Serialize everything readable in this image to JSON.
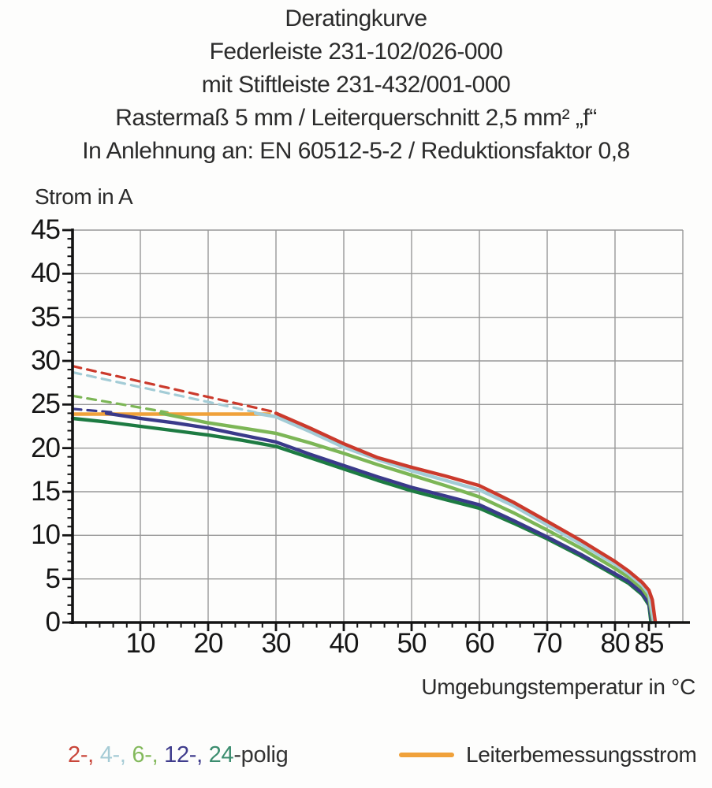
{
  "page": {
    "background": "#fdfdfc"
  },
  "title_lines": [
    "Deratingkurve",
    "Federleiste 231-102/026-000",
    "mit Stiftleiste 231-432/001-000",
    "Rastermaß 5 mm / Leiterquerschnitt 2,5 mm² „f“",
    "In Anlehnung an: EN 60512-5-2 / Reduktionsfaktor 0,8"
  ],
  "chart_data": {
    "type": "line",
    "title": "Deratingkurve",
    "ylabel": "Strom in A",
    "xlabel": "Umgebungstemperatur in °C",
    "xlim": [
      0,
      91
    ],
    "ylim": [
      0,
      45
    ],
    "grid": {
      "on": true,
      "color": "#989898",
      "x_lines": [
        10,
        20,
        30,
        40,
        50,
        60,
        70,
        80,
        90
      ],
      "y_lines": [
        5,
        10,
        15,
        20,
        25,
        30,
        35,
        40,
        45
      ]
    },
    "axes": {
      "color": "#141414",
      "x_major_ticks": [
        10,
        20,
        30,
        40,
        50,
        60,
        70,
        80,
        85
      ],
      "x_minor_step": 2,
      "y_major_ticks": [
        0,
        5,
        10,
        15,
        20,
        25,
        30,
        35,
        40,
        45
      ],
      "y_minor_step": 1
    },
    "series": [
      {
        "name": "24-polig",
        "color": "#1d7b42",
        "points": [
          [
            0,
            23.4
          ],
          [
            5,
            23.0
          ],
          [
            10,
            22.5
          ],
          [
            15,
            22.0
          ],
          [
            20,
            21.5
          ],
          [
            25,
            20.9
          ],
          [
            30,
            20.2
          ],
          [
            35,
            18.9
          ],
          [
            40,
            17.6
          ],
          [
            45,
            16.3
          ],
          [
            50,
            15.1
          ],
          [
            55,
            14.1
          ],
          [
            60,
            13.1
          ],
          [
            65,
            11.4
          ],
          [
            70,
            9.6
          ],
          [
            75,
            7.6
          ],
          [
            80,
            5.4
          ],
          [
            82,
            4.5
          ],
          [
            84,
            3.2
          ],
          [
            85,
            2.0
          ],
          [
            85.3,
            0
          ]
        ]
      },
      {
        "name": "12-polig",
        "color": "#3a3a8a",
        "points": [
          [
            5,
            24.0
          ],
          [
            10,
            23.4
          ],
          [
            15,
            22.9
          ],
          [
            20,
            22.3
          ],
          [
            25,
            21.5
          ],
          [
            30,
            20.7
          ],
          [
            35,
            19.3
          ],
          [
            40,
            18.0
          ],
          [
            45,
            16.7
          ],
          [
            50,
            15.5
          ],
          [
            55,
            14.5
          ],
          [
            60,
            13.5
          ],
          [
            65,
            11.7
          ],
          [
            70,
            9.8
          ],
          [
            75,
            7.8
          ],
          [
            80,
            5.6
          ],
          [
            82,
            4.7
          ],
          [
            84,
            3.4
          ],
          [
            85,
            2.2
          ],
          [
            85.45,
            0
          ]
        ]
      },
      {
        "name": "6-polig",
        "color": "#7cb656",
        "points": [
          [
            13,
            24.0
          ],
          [
            20,
            22.9
          ],
          [
            25,
            22.3
          ],
          [
            30,
            21.7
          ],
          [
            35,
            20.6
          ],
          [
            40,
            19.4
          ],
          [
            45,
            18.1
          ],
          [
            50,
            16.9
          ],
          [
            55,
            15.7
          ],
          [
            60,
            14.4
          ],
          [
            65,
            12.6
          ],
          [
            70,
            10.6
          ],
          [
            75,
            8.5
          ],
          [
            80,
            6.2
          ],
          [
            82,
            5.2
          ],
          [
            84,
            3.9
          ],
          [
            85,
            2.8
          ],
          [
            85.6,
            0
          ]
        ]
      },
      {
        "name": "4-polig",
        "color": "#a3ccd6",
        "points": [
          [
            27,
            24.0
          ],
          [
            30,
            23.6
          ],
          [
            35,
            21.9
          ],
          [
            40,
            20.1
          ],
          [
            45,
            18.7
          ],
          [
            50,
            17.4
          ],
          [
            55,
            16.3
          ],
          [
            60,
            15.2
          ],
          [
            65,
            13.4
          ],
          [
            70,
            11.2
          ],
          [
            75,
            9.0
          ],
          [
            80,
            6.7
          ],
          [
            82,
            5.6
          ],
          [
            84,
            4.3
          ],
          [
            85,
            3.3
          ],
          [
            85.75,
            0
          ]
        ]
      },
      {
        "name": "2-polig",
        "color": "#cb3a2c",
        "points": [
          [
            30,
            24.0
          ],
          [
            35,
            22.3
          ],
          [
            40,
            20.5
          ],
          [
            45,
            18.9
          ],
          [
            50,
            17.8
          ],
          [
            55,
            16.8
          ],
          [
            60,
            15.7
          ],
          [
            65,
            13.8
          ],
          [
            70,
            11.6
          ],
          [
            75,
            9.4
          ],
          [
            80,
            7.0
          ],
          [
            82,
            5.9
          ],
          [
            84,
            4.6
          ],
          [
            85,
            3.7
          ],
          [
            85.5,
            2.6
          ],
          [
            85.95,
            0
          ]
        ]
      }
    ],
    "extrapolations_dashed": [
      {
        "series": "2-polig",
        "color": "#cb3a2c",
        "points": [
          [
            0,
            29.4
          ],
          [
            30,
            24.1
          ]
        ]
      },
      {
        "series": "4-polig",
        "color": "#a3ccd6",
        "points": [
          [
            0,
            28.7
          ],
          [
            27,
            24.1
          ]
        ]
      },
      {
        "series": "6-polig",
        "color": "#7cb656",
        "points": [
          [
            0,
            26.0
          ],
          [
            14,
            24.1
          ]
        ]
      },
      {
        "series": "12-polig",
        "color": "#3a3a8a",
        "points": [
          [
            0,
            24.5
          ],
          [
            6,
            24.1
          ]
        ]
      }
    ],
    "rated_line": {
      "name": "Leiterbemessungsstrom",
      "color": "#f0a13a",
      "points": [
        [
          0,
          23.9
        ],
        [
          29,
          23.9
        ]
      ]
    },
    "legend_position": "bottom"
  },
  "legend": {
    "pole_segments": [
      {
        "text": "2-, ",
        "color": "#c9463a"
      },
      {
        "text": "4-, ",
        "color": "#a5cbd5"
      },
      {
        "text": "6-, ",
        "color": "#83b95c"
      },
      {
        "text": "12-, ",
        "color": "#403d8d"
      },
      {
        "text": "24",
        "color": "#3c8d6f"
      },
      {
        "text": "-polig",
        "color": "#333333"
      }
    ],
    "rated": {
      "label": "Leiterbemessungsstrom",
      "color": "#f0a13a"
    }
  }
}
